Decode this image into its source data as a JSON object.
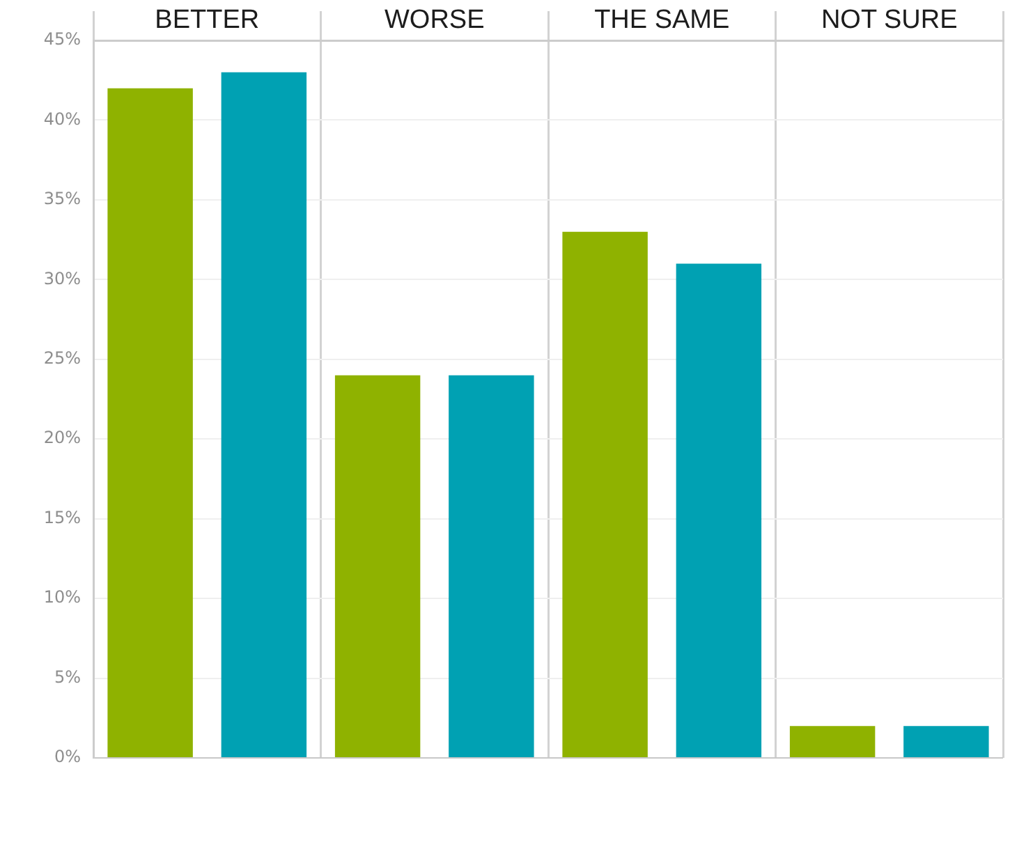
{
  "chart_data": {
    "type": "bar",
    "categories": [
      "BETTER",
      "WORSE",
      "THE SAME",
      "NOT SURE"
    ],
    "series": [
      {
        "color": "#8fb200",
        "values": [
          42,
          24,
          33,
          2
        ]
      },
      {
        "color": "#00a1b3",
        "values": [
          43,
          24,
          31,
          2
        ]
      }
    ],
    "ylim": [
      0,
      45
    ],
    "yticks": [
      {
        "value": 0,
        "label": "0%"
      },
      {
        "value": 5,
        "label": "5%"
      },
      {
        "value": 10,
        "label": "10%"
      },
      {
        "value": 15,
        "label": "15%"
      },
      {
        "value": 20,
        "label": "20%"
      },
      {
        "value": 25,
        "label": "25%"
      },
      {
        "value": 30,
        "label": "30%"
      },
      {
        "value": 35,
        "label": "35%"
      },
      {
        "value": 40,
        "label": "40%"
      },
      {
        "value": 45,
        "label": "45%"
      }
    ],
    "grid": true
  }
}
